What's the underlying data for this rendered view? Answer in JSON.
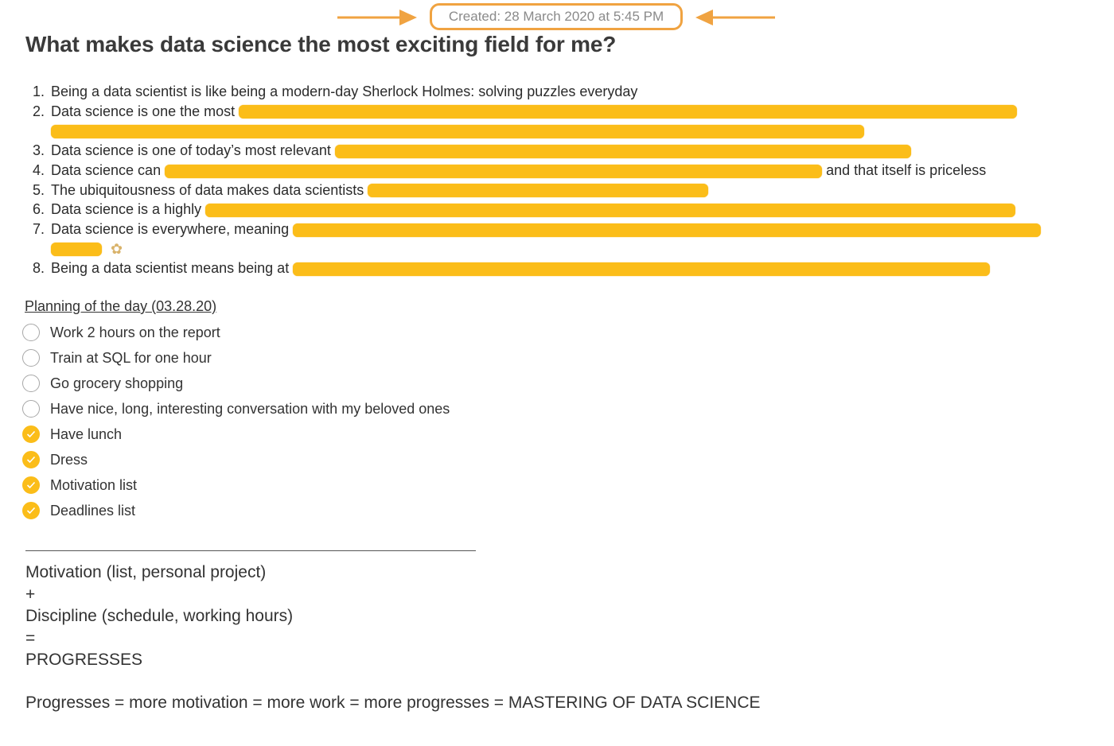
{
  "note": {
    "created": "Created: 28 March 2020 at 5:45 PM",
    "title": "What makes data science the most exciting field for me?",
    "items": [
      {
        "num": "1.",
        "text": "Being a data scientist is like being a modern-day Sherlock Holmes: solving puzzles everyday",
        "after": ""
      },
      {
        "num": "2.",
        "text": "Data science is one the most",
        "after": ""
      },
      {
        "num": "3.",
        "text": "Data science is one of today’s most relevant",
        "after": ""
      },
      {
        "num": "4.",
        "text": "Data science can",
        "after": "and that itself is priceless"
      },
      {
        "num": "5.",
        "text": "The ubiquitousness of data makes data scientists",
        "after": ""
      },
      {
        "num": "6.",
        "text": "Data science is a highly",
        "after": ""
      },
      {
        "num": "7.",
        "text": "Data science is everywhere, meaning",
        "after": ""
      },
      {
        "num": "8.",
        "text": "Being a data scientist means being at",
        "after": ""
      }
    ],
    "planning_title": "Planning of the day (03.28.20)",
    "todos": [
      {
        "label": "Work 2 hours on the report",
        "done": false
      },
      {
        "label": "Train at SQL for one hour",
        "done": false
      },
      {
        "label": "Go grocery shopping",
        "done": false
      },
      {
        "label": "Have nice, long, interesting conversation with my beloved ones",
        "done": false
      },
      {
        "label": "Have lunch",
        "done": true
      },
      {
        "label": "Dress",
        "done": true
      },
      {
        "label": "Motivation list",
        "done": true
      },
      {
        "label": "Deadlines list",
        "done": true
      }
    ],
    "formula": [
      "Motivation (list, personal project)",
      "+",
      "Discipline (schedule, working hours)",
      "=",
      "PROGRESSES"
    ],
    "conclusion": "Progresses = more motivation = more work = more progresses = MASTERING OF DATA SCIENCE",
    "colors": {
      "accent": "#fbbd19",
      "annotation": "#f0a341"
    },
    "icons": {
      "emoji": "clapping-hands-icon",
      "arrow": "arrow-icon"
    }
  }
}
